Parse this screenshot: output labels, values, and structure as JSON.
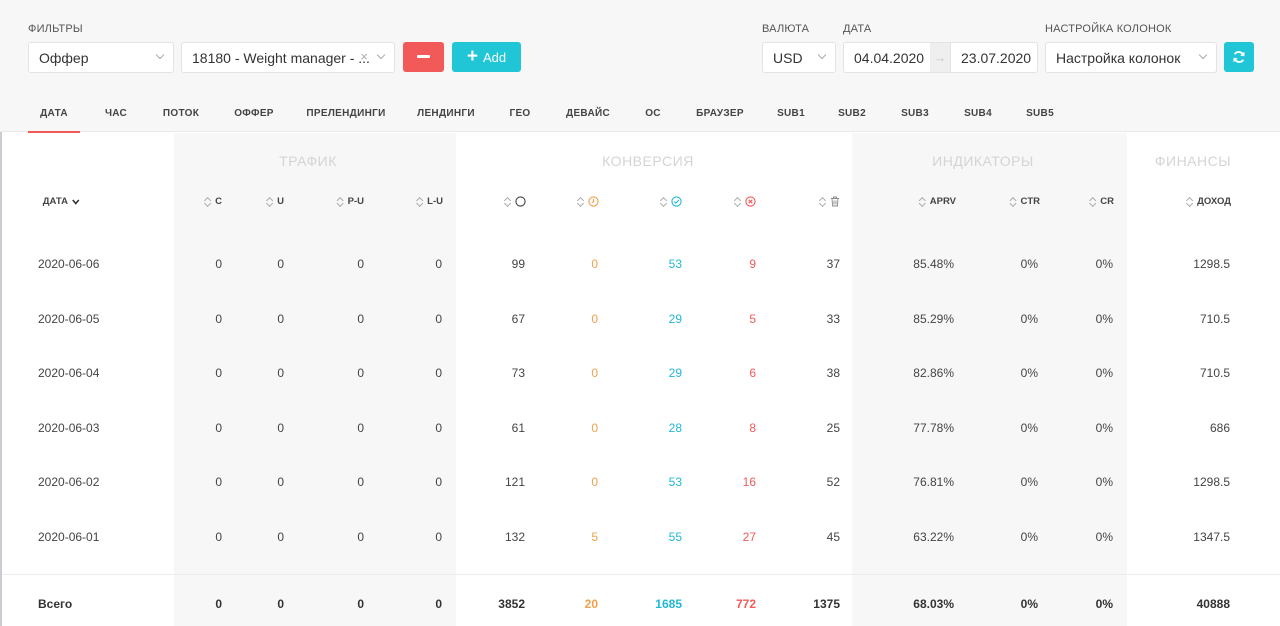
{
  "filters": {
    "label": "ФИЛЬТРЫ",
    "type_select": "Оффер",
    "value_select": "18180 - Weight manager - ...",
    "add_label": "Add"
  },
  "currency": {
    "label": "ВАЛЮТА",
    "value": "USD"
  },
  "date": {
    "label": "ДАТА",
    "from": "04.04.2020",
    "to": "23.07.2020",
    "arrow": "→"
  },
  "columns_setting": {
    "label": "НАСТРОЙКА КОЛОНОК",
    "value": "Настройка колонок"
  },
  "tabs": [
    "ДАТА",
    "ЧАС",
    "ПОТОК",
    "ОФФЕР",
    "ПРЕЛЕНДИНГИ",
    "ЛЕНДИНГИ",
    "ГЕО",
    "ДЕВАЙС",
    "ОС",
    "БРАУЗЕР",
    "SUB1",
    "SUB2",
    "SUB3",
    "SUB4",
    "SUB5"
  ],
  "active_tab": "ДАТА",
  "groups": [
    "ТРАФИК",
    "КОНВЕРСИЯ",
    "ИНДИКАТОРЫ",
    "ФИНАНСЫ"
  ],
  "headers": {
    "date": "ДАТА",
    "c": "C",
    "u": "U",
    "pu": "P-U",
    "lu": "L-U",
    "aprv": "APRV",
    "ctr": "CTR",
    "cr": "CR",
    "income": "ДОХОД"
  },
  "rows": [
    {
      "date": "2020-06-06",
      "c": "0",
      "u": "0",
      "pu": "0",
      "lu": "0",
      "total": "99",
      "hold": "0",
      "approved": "53",
      "rejected": "9",
      "trash": "37",
      "aprv": "85.48%",
      "ctr": "0%",
      "cr": "0%",
      "income": "1298.5"
    },
    {
      "date": "2020-06-05",
      "c": "0",
      "u": "0",
      "pu": "0",
      "lu": "0",
      "total": "67",
      "hold": "0",
      "approved": "29",
      "rejected": "5",
      "trash": "33",
      "aprv": "85.29%",
      "ctr": "0%",
      "cr": "0%",
      "income": "710.5"
    },
    {
      "date": "2020-06-04",
      "c": "0",
      "u": "0",
      "pu": "0",
      "lu": "0",
      "total": "73",
      "hold": "0",
      "approved": "29",
      "rejected": "6",
      "trash": "38",
      "aprv": "82.86%",
      "ctr": "0%",
      "cr": "0%",
      "income": "710.5"
    },
    {
      "date": "2020-06-03",
      "c": "0",
      "u": "0",
      "pu": "0",
      "lu": "0",
      "total": "61",
      "hold": "0",
      "approved": "28",
      "rejected": "8",
      "trash": "25",
      "aprv": "77.78%",
      "ctr": "0%",
      "cr": "0%",
      "income": "686"
    },
    {
      "date": "2020-06-02",
      "c": "0",
      "u": "0",
      "pu": "0",
      "lu": "0",
      "total": "121",
      "hold": "0",
      "approved": "53",
      "rejected": "16",
      "trash": "52",
      "aprv": "76.81%",
      "ctr": "0%",
      "cr": "0%",
      "income": "1298.5"
    },
    {
      "date": "2020-06-01",
      "c": "0",
      "u": "0",
      "pu": "0",
      "lu": "0",
      "total": "132",
      "hold": "5",
      "approved": "55",
      "rejected": "27",
      "trash": "45",
      "aprv": "63.22%",
      "ctr": "0%",
      "cr": "0%",
      "income": "1347.5"
    }
  ],
  "totals": {
    "label": "Всего",
    "c": "0",
    "u": "0",
    "pu": "0",
    "lu": "0",
    "total": "3852",
    "hold": "20",
    "approved": "1685",
    "rejected": "772",
    "trash": "1375",
    "aprv": "68.03%",
    "ctr": "0%",
    "cr": "0%",
    "income": "40888"
  },
  "colors": {
    "accent": "#21c6d6",
    "danger": "#f15a59",
    "warning": "#f0a04b"
  }
}
